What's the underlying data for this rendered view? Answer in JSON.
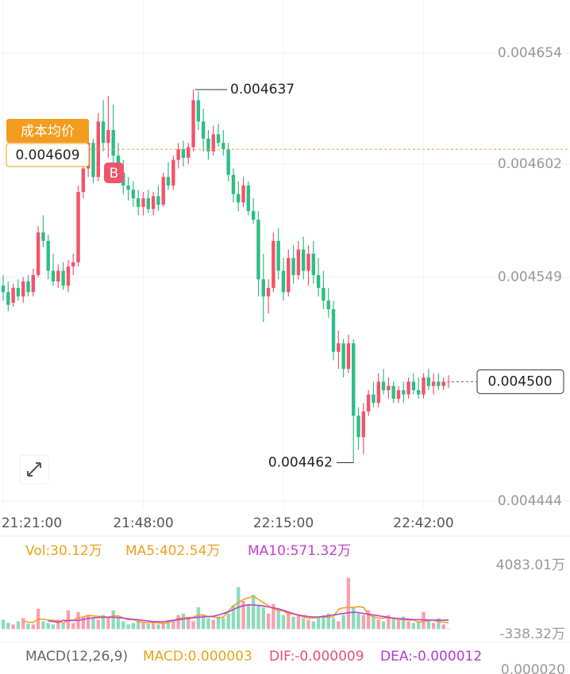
{
  "chart_data": [
    {
      "type": "candlestick",
      "up_color": "#f0546b",
      "down_color": "#2fbd85",
      "xlim": [
        0,
        89
      ],
      "ylim": [
        0.004441,
        0.004679
      ],
      "xticks": [
        {
          "value": 0,
          "label": "21:21:00"
        },
        {
          "value": 28,
          "label": "21:48:00"
        },
        {
          "value": 56,
          "label": "22:15:00"
        },
        {
          "value": 84,
          "label": "22:42:00"
        }
      ],
      "yticks": [
        0.004654,
        0.004602,
        0.004549,
        0.004444
      ],
      "grid": true,
      "open": [
        0.004545,
        0.004542,
        0.004537,
        0.004544,
        0.00454,
        0.004547,
        0.004542,
        0.00455,
        0.00457,
        0.004566,
        0.004552,
        0.004547,
        0.004552,
        0.004545,
        0.004554,
        0.004556,
        0.004589,
        0.0046,
        0.004612,
        0.004596,
        0.004622,
        0.004612,
        0.004618,
        0.004606,
        0.004598,
        0.004592,
        0.00459,
        0.004586,
        0.004582,
        0.004586,
        0.004581,
        0.004587,
        0.004583,
        0.004596,
        0.004592,
        0.004604,
        0.004609,
        0.004605,
        0.00461,
        0.004632,
        0.004622,
        0.004614,
        0.004608,
        0.004616,
        0.004612,
        0.004609,
        0.004597,
        0.004588,
        0.004584,
        0.004592,
        0.00458,
        0.004576,
        0.004548,
        0.00454,
        0.004544,
        0.004566,
        0.004552,
        0.004542,
        0.004558,
        0.00455,
        0.004562,
        0.004552,
        0.00456,
        0.00455,
        0.004544,
        0.004538,
        0.004534,
        0.004514,
        0.004518,
        0.004506,
        0.004518,
        0.004484,
        0.004474,
        0.004486,
        0.004494,
        0.00449,
        0.0045,
        0.004496,
        0.004498,
        0.004492,
        0.004496,
        0.004494,
        0.0045,
        0.004496,
        0.004494,
        0.004502,
        0.004498,
        0.0045,
        0.004498,
        0.0045
      ],
      "high": [
        0.00455,
        0.004547,
        0.004546,
        0.004548,
        0.004549,
        0.00455,
        0.004553,
        0.004573,
        0.004578,
        0.004569,
        0.00456,
        0.004555,
        0.004556,
        0.004557,
        0.00456,
        0.004592,
        0.004604,
        0.004616,
        0.004614,
        0.004626,
        0.004632,
        0.004634,
        0.00463,
        0.004612,
        0.004604,
        0.004596,
        0.004594,
        0.00459,
        0.004589,
        0.00459,
        0.004589,
        0.004592,
        0.004598,
        0.004603,
        0.004606,
        0.004612,
        0.004613,
        0.004612,
        0.004637,
        0.004636,
        0.004628,
        0.004618,
        0.00462,
        0.004621,
        0.004618,
        0.004612,
        0.0046,
        0.004594,
        0.004596,
        0.004594,
        0.004586,
        0.00458,
        0.00456,
        0.004548,
        0.00457,
        0.004572,
        0.004558,
        0.004562,
        0.004564,
        0.004566,
        0.004568,
        0.004564,
        0.004566,
        0.004558,
        0.004552,
        0.004544,
        0.004538,
        0.004524,
        0.00452,
        0.004522,
        0.00452,
        0.004488,
        0.00449,
        0.004496,
        0.0045,
        0.004504,
        0.004506,
        0.004502,
        0.0045,
        0.004498,
        0.0045,
        0.004502,
        0.004504,
        0.004502,
        0.004504,
        0.004506,
        0.004504,
        0.004504,
        0.004502,
        0.004503
      ],
      "low": [
        0.004538,
        0.004533,
        0.004535,
        0.004538,
        0.004537,
        0.00454,
        0.00454,
        0.004549,
        0.004563,
        0.004548,
        0.004545,
        0.004544,
        0.004543,
        0.004542,
        0.00455,
        0.004554,
        0.004586,
        0.004596,
        0.004593,
        0.004594,
        0.004608,
        0.004605,
        0.004602,
        0.004594,
        0.004588,
        0.004585,
        0.004582,
        0.004578,
        0.004578,
        0.004579,
        0.004578,
        0.00458,
        0.004582,
        0.00459,
        0.00459,
        0.0046,
        0.004601,
        0.004602,
        0.004608,
        0.004618,
        0.004608,
        0.004604,
        0.004606,
        0.00461,
        0.004606,
        0.004594,
        0.004584,
        0.00458,
        0.004582,
        0.004578,
        0.004574,
        0.00454,
        0.004528,
        0.004532,
        0.004542,
        0.004548,
        0.004538,
        0.00454,
        0.004546,
        0.004548,
        0.004548,
        0.004545,
        0.004546,
        0.00454,
        0.004534,
        0.00453,
        0.00451,
        0.004506,
        0.004502,
        0.004504,
        0.004462,
        0.004468,
        0.004466,
        0.004484,
        0.004488,
        0.004488,
        0.004494,
        0.004492,
        0.00449,
        0.00449,
        0.00449,
        0.004492,
        0.004494,
        0.004492,
        0.004492,
        0.004496,
        0.004494,
        0.004496,
        0.004496,
        0.004497
      ],
      "close": [
        0.004542,
        0.004536,
        0.004544,
        0.00454,
        0.004547,
        0.004542,
        0.00455,
        0.00457,
        0.004566,
        0.004552,
        0.004547,
        0.004552,
        0.004545,
        0.004554,
        0.004556,
        0.004589,
        0.0046,
        0.004612,
        0.004596,
        0.004622,
        0.004612,
        0.004618,
        0.004606,
        0.004598,
        0.004592,
        0.00459,
        0.004586,
        0.004582,
        0.004586,
        0.004581,
        0.004587,
        0.004583,
        0.004596,
        0.004592,
        0.004604,
        0.004609,
        0.004605,
        0.00461,
        0.004632,
        0.004622,
        0.004614,
        0.004608,
        0.004616,
        0.004612,
        0.004609,
        0.004597,
        0.004588,
        0.004584,
        0.004592,
        0.00458,
        0.004576,
        0.004548,
        0.00454,
        0.004544,
        0.004566,
        0.004552,
        0.004542,
        0.004558,
        0.00455,
        0.004562,
        0.004552,
        0.00456,
        0.00455,
        0.004544,
        0.004538,
        0.004534,
        0.004514,
        0.004518,
        0.004506,
        0.004518,
        0.004484,
        0.004474,
        0.004486,
        0.004494,
        0.00449,
        0.0045,
        0.004496,
        0.004498,
        0.004492,
        0.004496,
        0.004494,
        0.0045,
        0.004496,
        0.004494,
        0.004502,
        0.004498,
        0.0045,
        0.004498,
        0.0045,
        0.0045
      ],
      "high_label": 0.004637,
      "low_label": 0.004462,
      "cost_title": "成本均价",
      "cost": 0.004609,
      "buy_marker": "B",
      "last_price": {
        "value": 0.0045,
        "label": "0.004500"
      }
    },
    {
      "type": "volume",
      "ylim": [
        -338.32,
        4083.01
      ],
      "yticks": [
        {
          "value": 4083.01,
          "label": "4083.01万"
        },
        {
          "value": -338.32,
          "label": "-338.32万"
        }
      ],
      "series": [
        {
          "name": "Vol:30.12万",
          "color": "#e8a317",
          "values": [
            600,
            400,
            300,
            500,
            700,
            350,
            300,
            1300,
            500,
            400,
            300,
            600,
            350,
            1200,
            400,
            1100,
            800,
            900,
            700,
            600,
            900,
            800,
            1200,
            700,
            500,
            300,
            400,
            600,
            400,
            350,
            500,
            300,
            400,
            500,
            600,
            900,
            1000,
            700,
            500,
            1400,
            900,
            700,
            600,
            800,
            700,
            1000,
            1500,
            2700,
            1800,
            1600,
            2200,
            1500,
            1400,
            1000,
            1600,
            1200,
            900,
            1100,
            800,
            900,
            700,
            600,
            500,
            800,
            900,
            1000,
            700,
            500,
            900,
            3300,
            1400,
            1000,
            900,
            1200,
            800,
            600,
            500,
            900,
            700,
            600,
            800,
            500,
            400,
            500,
            1100,
            500,
            400,
            700,
            300,
            30.12
          ]
        },
        {
          "name": "MA5:402.54万",
          "color": "#f0a020",
          "values": [
            null,
            null,
            null,
            null,
            500,
            450,
            430,
            630,
            630,
            570,
            560,
            510,
            390,
            570,
            570,
            730,
            770,
            880,
            840,
            820,
            800,
            760,
            840,
            840,
            720,
            600,
            600,
            500,
            440,
            410,
            450,
            390,
            380,
            420,
            540,
            680,
            720,
            740,
            760,
            900,
            900,
            800,
            780,
            720,
            760,
            1160,
            1500,
            1700,
            1900,
            2000,
            2100,
            1900,
            1700,
            1500,
            1300,
            1200,
            1160,
            980,
            980,
            880,
            780,
            700,
            700,
            760,
            780,
            760,
            780,
            1280,
            1360,
            1380,
            1380,
            1440,
            1400,
            900,
            800,
            700,
            700,
            740,
            700,
            620,
            600,
            580,
            580,
            440,
            500,
            540,
            560,
            480,
            450,
            402.54
          ]
        },
        {
          "name": "MA10:571.32万",
          "color": "#c040d0",
          "values": [
            null,
            null,
            null,
            null,
            null,
            null,
            null,
            null,
            null,
            520,
            480,
            450,
            560,
            540,
            550,
            560,
            620,
            680,
            720,
            740,
            760,
            760,
            760,
            740,
            700,
            660,
            620,
            600,
            560,
            520,
            480,
            470,
            480,
            520,
            560,
            600,
            640,
            680,
            720,
            760,
            780,
            800,
            820,
            900,
            1000,
            1100,
            1250,
            1400,
            1500,
            1550,
            1540,
            1520,
            1480,
            1420,
            1360,
            1300,
            1200,
            1100,
            1000,
            900,
            850,
            800,
            780,
            780,
            800,
            850,
            900,
            950,
            1000,
            1050,
            1080,
            1060,
            1000,
            950,
            900,
            850,
            800,
            750,
            700,
            680,
            650,
            630,
            610,
            600,
            590,
            580,
            575,
            573,
            572,
            571.32
          ]
        }
      ]
    },
    {
      "type": "macd",
      "series": [
        {
          "name": "MACD(12,26,9)",
          "color": "#666666"
        },
        {
          "name": "MACD:0.000003",
          "color": "#e8a317"
        },
        {
          "name": "DIF:-0.000009",
          "color": "#e0507a"
        },
        {
          "name": "DEA:-0.000012",
          "color": "#b03ad0"
        }
      ],
      "axis_label": "0.000020"
    }
  ]
}
